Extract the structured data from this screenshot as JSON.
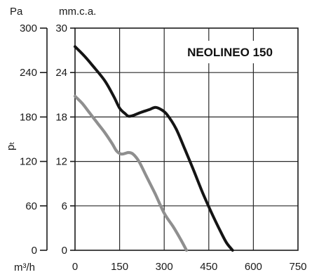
{
  "chart_data": {
    "type": "line",
    "title": "NEOLINEO 150",
    "xlabel": "m³/h",
    "y_left_unit": "Pa",
    "y_right_unit": "mm.c.a.",
    "ylabel": "pₜ",
    "x_ticks": [
      "0",
      "150",
      "300",
      "450",
      "600",
      "750"
    ],
    "y_pa_ticks": [
      "0",
      "60",
      "120",
      "180",
      "240",
      "300"
    ],
    "y_mm_ticks": [
      "0",
      "6",
      "12",
      "18",
      "24",
      "30"
    ],
    "xlim": [
      0,
      750
    ],
    "ylim_pa": [
      0,
      300
    ],
    "ylim_mm": [
      0,
      30
    ],
    "grid": true,
    "legend": "none",
    "series": [
      {
        "color": "#141414",
        "x": [
          0,
          30,
          60,
          100,
          130,
          150,
          170,
          180,
          195,
          220,
          250,
          270,
          290,
          310,
          340,
          370,
          400,
          430,
          460,
          490,
          510,
          530
        ],
        "y": [
          27.5,
          26.3,
          24.9,
          22.9,
          20.8,
          19.2,
          18.4,
          18.1,
          18.2,
          18.6,
          19.0,
          19.3,
          19.0,
          18.3,
          16.4,
          13.6,
          10.7,
          7.7,
          5.0,
          2.5,
          1.0,
          0.0
        ]
      },
      {
        "color": "#8f8f8f",
        "x": [
          0,
          25,
          50,
          75,
          100,
          125,
          140,
          155,
          170,
          180,
          195,
          215,
          240,
          270,
          300,
          330,
          355,
          375
        ],
        "y": [
          20.8,
          19.8,
          18.5,
          17.2,
          15.9,
          14.4,
          13.4,
          13.0,
          13.1,
          13.2,
          13.0,
          12.0,
          10.0,
          7.6,
          5.0,
          3.2,
          1.5,
          0.0
        ]
      }
    ]
  }
}
